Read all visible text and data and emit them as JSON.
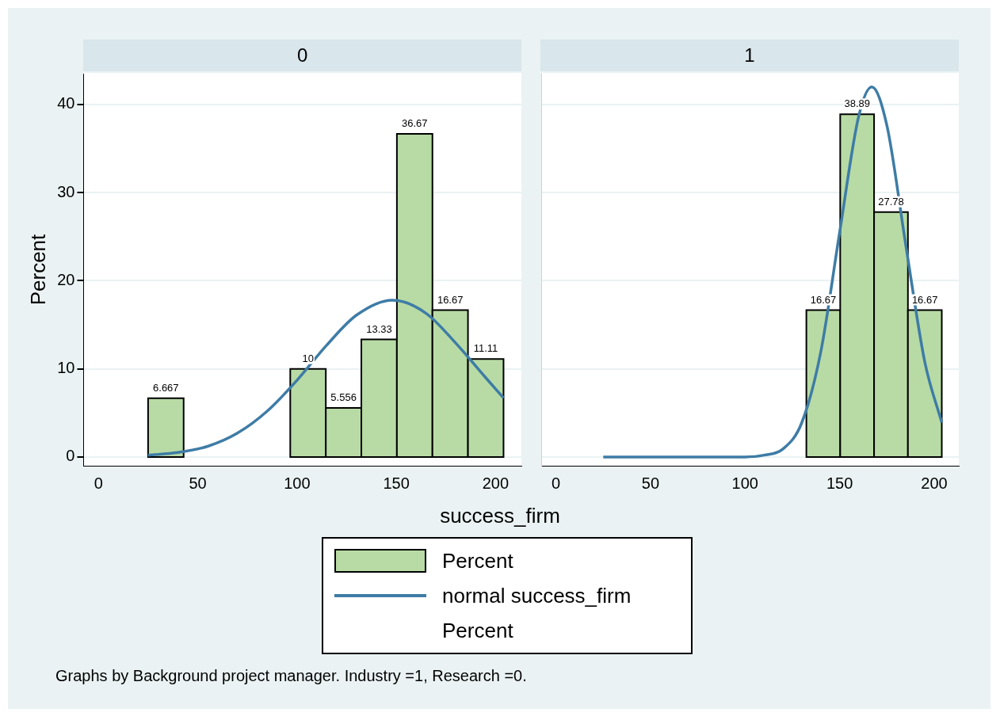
{
  "chart_data": [
    {
      "type": "histogram",
      "title": "0",
      "xlabel": "success_firm",
      "ylabel": "Percent",
      "bins": [
        25,
        42.9,
        60.8,
        78.7,
        96.6,
        114.5,
        132.4,
        150.3,
        168.2,
        186.1,
        204
      ],
      "xlim": [
        -7.5,
        213
      ],
      "xticks": [
        0,
        50,
        100,
        150,
        200
      ],
      "ylim": [
        -1,
        43.5
      ],
      "yticks": [
        0,
        10,
        20,
        30,
        40
      ],
      "grid": "y",
      "legend": "bottom",
      "annotations": [
        "Percent",
        "Graphs by Background project manager. Industry =1, Research =0."
      ],
      "series": [
        {
          "type": "histogram",
          "name": "Percent",
          "color": "#b8dba5",
          "values": [
            6.667,
            0,
            0,
            0,
            10,
            5.556,
            13.33,
            36.67,
            16.67,
            11.11
          ],
          "value_labels": [
            "6.667",
            null,
            null,
            null,
            "10",
            "5.556",
            "13.33",
            "36.67",
            "16.67",
            "11.11"
          ]
        },
        {
          "type": "line",
          "name": "normal success_firm",
          "color": "#3e7ca6",
          "x": [
            25,
            40,
            55,
            70,
            85,
            100,
            115,
            130,
            148,
            165,
            180,
            195,
            204
          ],
          "values": [
            0.2,
            0.5,
            1.2,
            2.7,
            5.2,
            8.7,
            12.7,
            16.1,
            17.8,
            16.3,
            12.9,
            9.0,
            6.7
          ]
        }
      ]
    },
    {
      "type": "histogram",
      "title": "1",
      "bins": [
        25,
        42.9,
        60.8,
        78.7,
        96.6,
        114.5,
        132.4,
        150.3,
        168.2,
        186.1,
        204
      ],
      "xlim": [
        -7.5,
        213
      ],
      "xticks": [
        0,
        50,
        100,
        150,
        200
      ],
      "ylim": [
        -1,
        43.5
      ],
      "yticks": [
        0,
        10,
        20,
        30,
        40
      ],
      "grid": "y",
      "tick_labels": "x",
      "series": [
        {
          "type": "histogram",
          "color": "#b8dba5",
          "values": [
            0,
            0,
            0,
            0,
            0,
            0,
            16.67,
            38.89,
            27.78,
            16.67
          ],
          "value_labels": [
            null,
            null,
            null,
            null,
            null,
            null,
            "16.67",
            "38.89",
            "27.78",
            "16.67"
          ]
        },
        {
          "type": "line",
          "color": "#3e7ca6",
          "x": [
            25,
            50,
            75,
            100,
            110,
            120,
            130,
            140,
            150,
            160,
            167,
            175,
            185,
            195,
            204
          ],
          "values": [
            0,
            0,
            0,
            0,
            0.2,
            0.9,
            3.9,
            11.9,
            25.5,
            38.6,
            42,
            37.6,
            24,
            10.8,
            3.9
          ]
        }
      ]
    }
  ]
}
